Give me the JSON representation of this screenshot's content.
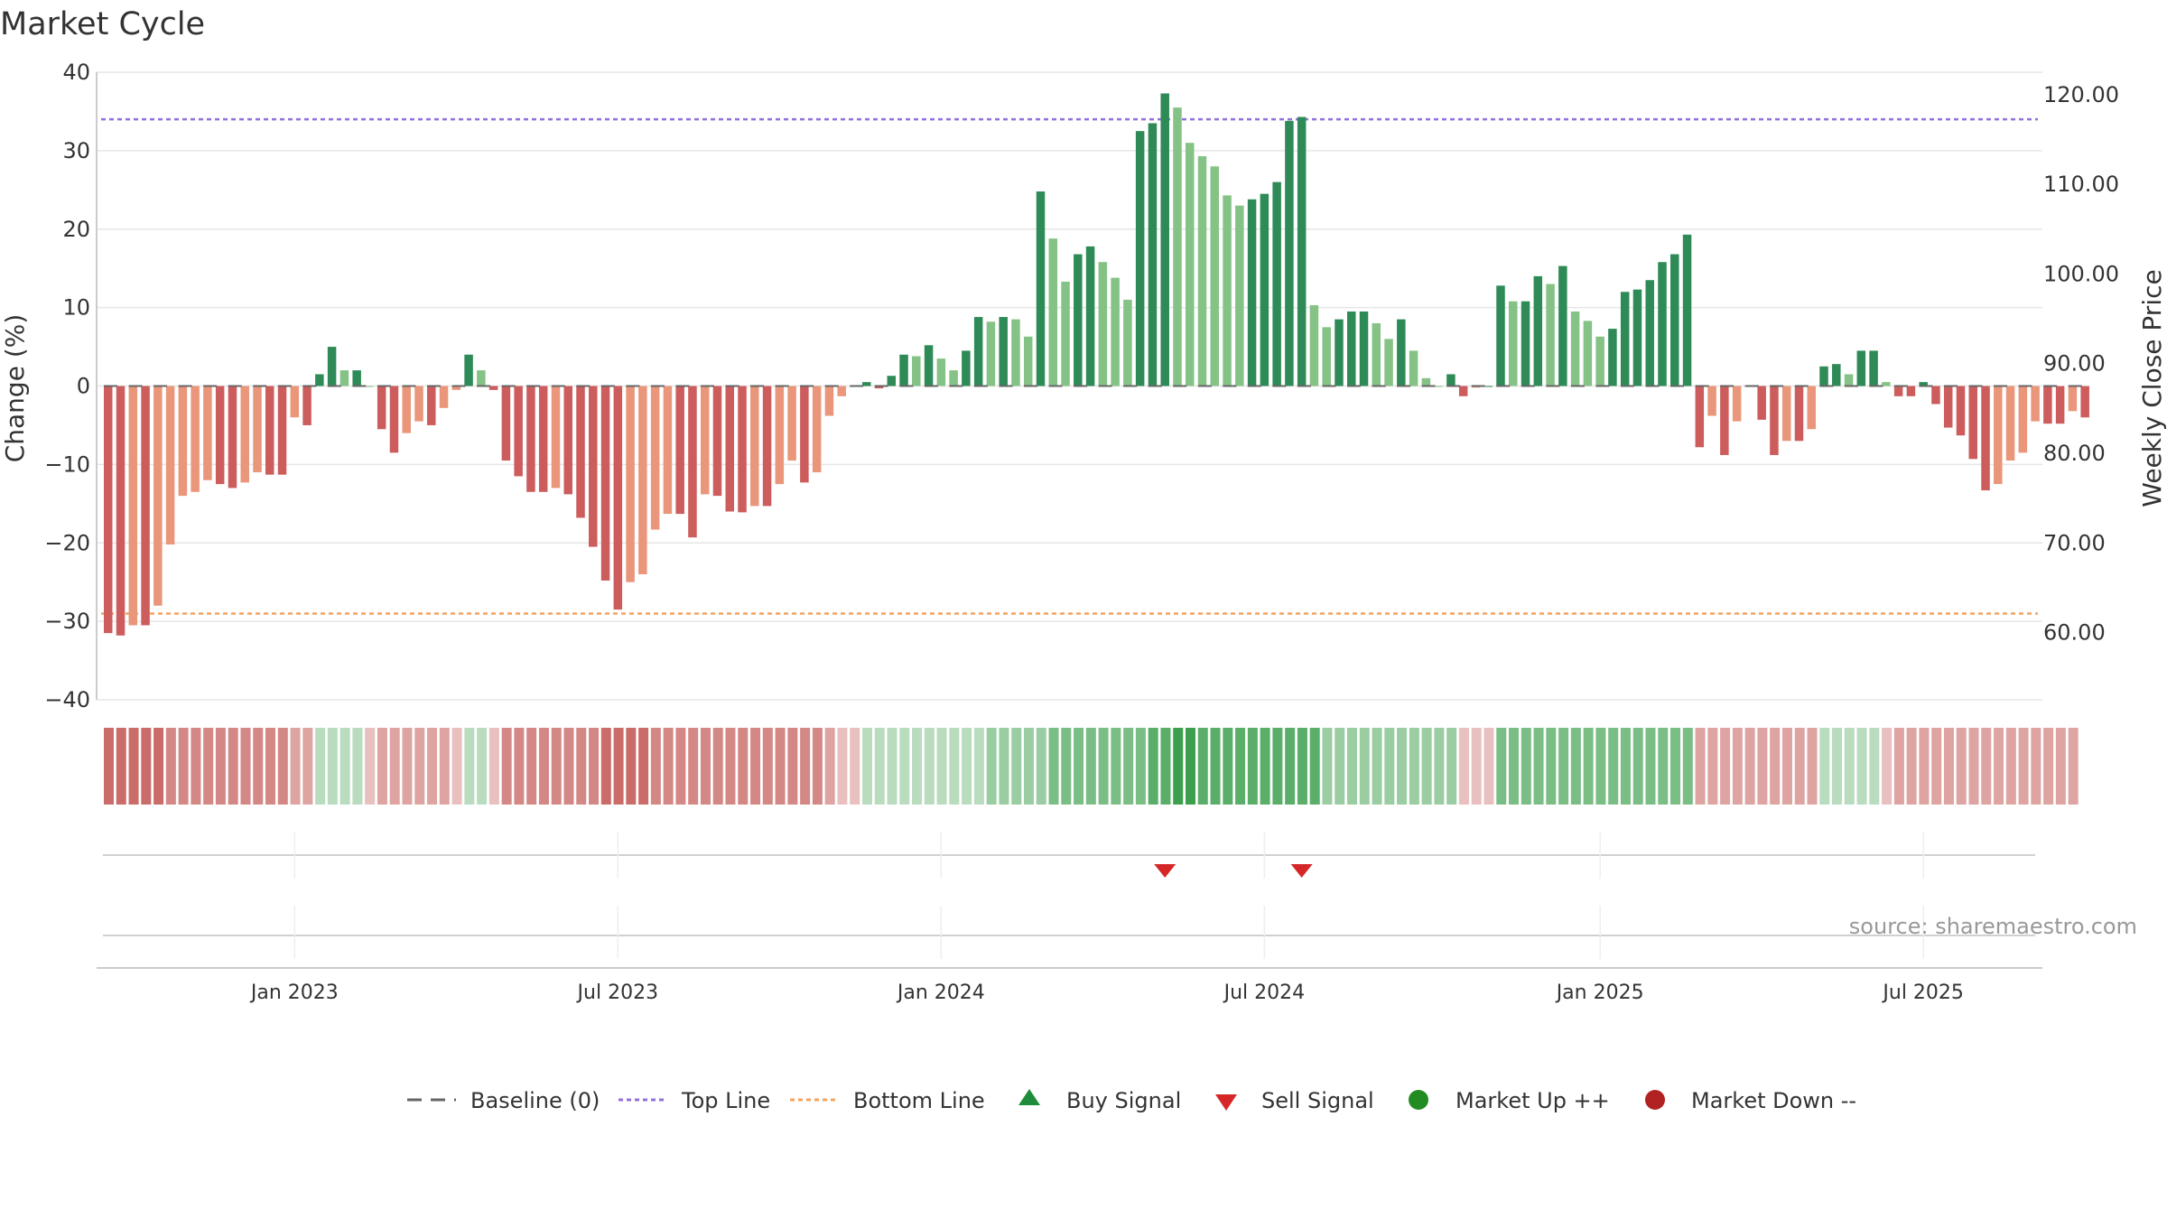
{
  "chart_data": {
    "type": "bar",
    "title": "Market Cycle",
    "ylabel": "Change (%)",
    "y2label": "Weekly Close Price",
    "ylim": [
      -40,
      40
    ],
    "y2lim": [
      52.5,
      122.5
    ],
    "yticks": [
      40,
      30,
      20,
      10,
      0,
      -10,
      -20,
      -30,
      -40
    ],
    "ytick_labels": [
      "40",
      "30",
      "20",
      "10",
      "0",
      "−10",
      "−20",
      "−30",
      "−40"
    ],
    "y2ticks": [
      120,
      110,
      100,
      90,
      80,
      70,
      60
    ],
    "y2tick_labels": [
      "120.00",
      "110.00",
      "100.00",
      "90.00",
      "80.00",
      "70.00",
      "60.00"
    ],
    "top_line": 34,
    "bottom_line": -29,
    "x_ticks": [
      {
        "label": "Jan 2023",
        "index": 15
      },
      {
        "label": "Jul 2023",
        "index": 41
      },
      {
        "label": "Jan 2024",
        "index": 67
      },
      {
        "label": "Jul 2024",
        "index": 93
      },
      {
        "label": "Jan 2025",
        "index": 120
      },
      {
        "label": "Jul 2025",
        "index": 146
      }
    ],
    "values": [
      -31.5,
      -31.8,
      -30.5,
      -30.5,
      -28,
      -20.2,
      -14,
      -13.5,
      -12,
      -12.5,
      -13,
      -12.3,
      -11,
      -11.3,
      -11.3,
      -4,
      -5,
      1.5,
      5,
      2,
      2,
      0,
      -5.5,
      -8.5,
      -6,
      -4.5,
      -5,
      -2.8,
      -0.5,
      4,
      2,
      -0.5,
      -9.5,
      -11.5,
      -13.5,
      -13.5,
      -13,
      -13.8,
      -16.8,
      -20.5,
      -24.8,
      -28.5,
      -25,
      -24,
      -18.3,
      -16.3,
      -16.3,
      -19.3,
      -13.8,
      -14,
      -16,
      -16.1,
      -15.3,
      -15.3,
      -12.5,
      -9.5,
      -12.3,
      -11,
      -3.8,
      -1.3,
      0,
      0.5,
      -0.3,
      1.3,
      4,
      3.8,
      5.2,
      3.5,
      2,
      4.5,
      8.8,
      8.2,
      8.8,
      8.5,
      6.3,
      24.8,
      18.8,
      13.3,
      16.8,
      17.8,
      15.8,
      13.8,
      11,
      32.5,
      33.5,
      37.3,
      35.5,
      31,
      29.3,
      28,
      24.3,
      23,
      23.8,
      24.5,
      26,
      33.8,
      34.3,
      10.3,
      7.5,
      8.5,
      9.5,
      9.5,
      8,
      6,
      8.5,
      4.5,
      1,
      0,
      1.5,
      -1.3,
      -0.2,
      0,
      12.8,
      10.8,
      10.8,
      14,
      13,
      15.3,
      9.5,
      8.3,
      6.3,
      7.3,
      12,
      12.3,
      13.5,
      15.8,
      16.8,
      19.3,
      -7.8,
      -3.8,
      -8.8,
      -4.5,
      0,
      -4.3,
      -8.8,
      -7,
      -7,
      -5.5,
      2.5,
      2.8,
      1.5,
      4.5,
      4.5,
      0.5,
      -1.3,
      -1.3,
      0.5,
      -2.3,
      -5.3,
      -6.3,
      -9.3,
      -13.3,
      -12.5,
      -9.5,
      -8.5,
      -4.5,
      -4.8,
      -4.8,
      -3.2,
      -4
    ],
    "heat_levels": [
      4,
      4,
      4,
      4,
      4,
      3,
      3,
      3,
      3,
      3,
      3,
      3,
      3,
      3,
      3,
      2,
      2,
      -1,
      -1,
      -1,
      -1,
      1,
      2,
      2,
      2,
      2,
      2,
      2,
      1,
      -1,
      -1,
      1,
      3,
      3,
      3,
      3,
      3,
      3,
      3,
      3,
      4,
      4,
      4,
      4,
      3,
      3,
      3,
      3,
      3,
      3,
      3,
      3,
      3,
      3,
      3,
      3,
      3,
      3,
      2,
      1,
      1,
      -1,
      -1,
      -1,
      -1,
      -1,
      -1,
      -1,
      -1,
      -1,
      -1,
      -2,
      -2,
      -2,
      -2,
      -2,
      -3,
      -3,
      -3,
      -3,
      -3,
      -3,
      -3,
      -3,
      -4,
      -4,
      -5,
      -5,
      -4,
      -4,
      -4,
      -4,
      -4,
      -4,
      -4,
      -4,
      -4,
      -4,
      -2,
      -2,
      -2,
      -2,
      -2,
      -2,
      -2,
      -2,
      -2,
      -2,
      -2,
      1,
      1,
      1,
      -3,
      -3,
      -3,
      -3,
      -3,
      -3,
      -3,
      -3,
      -3,
      -3,
      -3,
      -3,
      -3,
      -3,
      -3,
      -3,
      2,
      2,
      2,
      2,
      2,
      2,
      2,
      2,
      2,
      2,
      -1,
      -1,
      -1,
      -1,
      -1,
      1,
      2,
      2,
      2,
      2,
      2,
      2,
      2,
      2,
      2,
      2,
      2,
      2,
      2,
      2,
      2
    ],
    "sell_signals": [
      85,
      96
    ],
    "buy_signals": [],
    "legend": [
      "Baseline (0)",
      "Top Line",
      "Bottom Line",
      "Buy Signal",
      "Sell Signal",
      "Market Up ++",
      "Market Down --"
    ],
    "source": "source: sharemaestro.com",
    "colors": {
      "up_strong": "#2e8b57",
      "up_light": "#85c285",
      "down_strong": "#cd5c5c",
      "down_light": "#e9967a",
      "top_line": "#9370db",
      "bottom_line": "#f4a460",
      "buy": "#1e8c3a",
      "sell": "#d62728",
      "market_up": "#228b22",
      "market_down": "#b22222",
      "baseline": "#666666"
    }
  }
}
